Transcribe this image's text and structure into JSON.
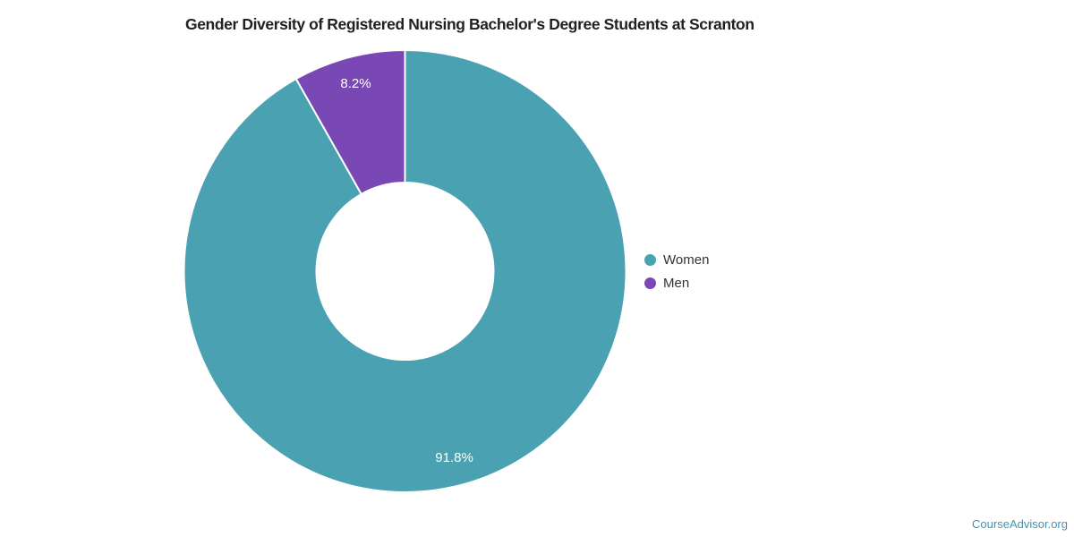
{
  "title": "Gender Diversity of Registered Nursing Bachelor's Degree Students at Scranton",
  "legend": {
    "items": [
      {
        "label": "Women",
        "color": "#4AA1B2"
      },
      {
        "label": "Men",
        "color": "#7A48B5"
      }
    ]
  },
  "footer": {
    "link_text": "CourseAdvisor.org",
    "link_color": "#3F93AF"
  },
  "chart_data": {
    "type": "pie",
    "donut": true,
    "title": "Gender Diversity of Registered Nursing Bachelor's Degree Students at Scranton",
    "start_angle_deg": 0,
    "direction": "clockwise",
    "inner_radius_ratio": 0.4,
    "legend_position": "right",
    "slice_border_color": "#ffffff",
    "label_color": "#ffffff",
    "series": [
      {
        "name": "Women",
        "value": 91.8,
        "label": "91.8%",
        "color": "#4AA1B2"
      },
      {
        "name": "Men",
        "value": 8.2,
        "label": "8.2%",
        "color": "#7A48B5"
      }
    ]
  }
}
